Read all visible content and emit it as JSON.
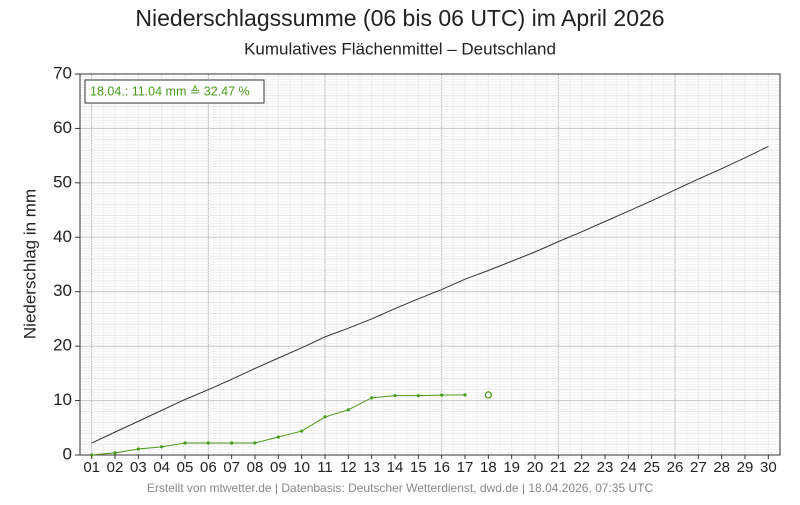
{
  "chart_data": {
    "type": "line",
    "title": "Niederschlagssumme (06 bis 06 UTC) im April 2026",
    "subtitle": "Kumulatives Flächenmittel – Deutschland",
    "y_label": "Niederschlag in mm",
    "footer": "Erstellt von mtwetter.de | Datenbasis: Deutscher Wetterdienst, dwd.de | 18.04.2026, 07:35 UTC",
    "annotation": "18.04.: 11.04 mm ≙ 32.47 %",
    "categories": [
      "01",
      "02",
      "03",
      "04",
      "05",
      "06",
      "07",
      "08",
      "09",
      "10",
      "11",
      "12",
      "13",
      "14",
      "15",
      "16",
      "17",
      "18",
      "19",
      "20",
      "21",
      "22",
      "23",
      "24",
      "25",
      "26",
      "27",
      "28",
      "29",
      "30"
    ],
    "ylim": [
      0,
      70
    ],
    "yticks": [
      0,
      10,
      20,
      30,
      40,
      50,
      60,
      70
    ],
    "grid": true,
    "series": [
      {
        "color": "#333333",
        "marker": false,
        "values": [
          2.2,
          4.2,
          6.2,
          8.2,
          10.2,
          12.0,
          13.9,
          15.9,
          17.8,
          19.7,
          21.7,
          23.3,
          25.0,
          26.9,
          28.7,
          30.4,
          32.3,
          33.9,
          35.6,
          37.3,
          39.2,
          41.0,
          42.9,
          44.8,
          46.7,
          48.7,
          50.7,
          52.6,
          54.6,
          56.7
        ]
      },
      {
        "color": "#4a9a1a",
        "marker": true,
        "values": [
          0,
          0.4,
          1.1,
          1.5,
          2.2,
          2.2,
          2.2,
          2.2,
          3.3,
          4.4,
          7.0,
          8.3,
          10.5,
          10.9,
          10.9,
          11.0,
          11.04,
          null,
          null,
          null,
          null,
          null,
          null,
          null,
          null,
          null,
          null,
          null,
          null,
          null
        ]
      },
      {
        "color": "#4a9a1a",
        "marker": "open",
        "values": [
          null,
          null,
          null,
          null,
          null,
          null,
          null,
          null,
          null,
          null,
          null,
          null,
          null,
          null,
          null,
          null,
          null,
          11.04,
          null,
          null,
          null,
          null,
          null,
          null,
          null,
          null,
          null,
          null,
          null,
          null
        ]
      }
    ]
  }
}
